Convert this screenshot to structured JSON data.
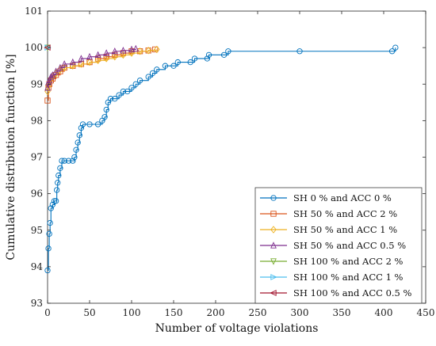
{
  "chart_data": {
    "type": "line",
    "xlabel": "Number of voltage violations",
    "ylabel": "Cumulative distribution function [%]",
    "xlim": [
      0,
      450
    ],
    "ylim": [
      93,
      101
    ],
    "xticks": [
      0,
      50,
      100,
      150,
      200,
      250,
      300,
      350,
      400,
      450
    ],
    "yticks": [
      93,
      94,
      95,
      96,
      97,
      98,
      99,
      100,
      101
    ],
    "legend_position": "bottom-right",
    "series": [
      {
        "name": "SH 0 % and ACC 0 %",
        "color": "#0072BD",
        "marker": "circle",
        "points": [
          [
            0,
            93.9
          ],
          [
            1,
            94.5
          ],
          [
            2,
            94.9
          ],
          [
            3,
            95.2
          ],
          [
            4,
            95.6
          ],
          [
            6,
            95.7
          ],
          [
            8,
            95.8
          ],
          [
            10,
            95.8
          ],
          [
            11,
            96.1
          ],
          [
            12,
            96.3
          ],
          [
            13,
            96.5
          ],
          [
            15,
            96.7
          ],
          [
            17,
            96.9
          ],
          [
            20,
            96.9
          ],
          [
            25,
            96.9
          ],
          [
            30,
            96.9
          ],
          [
            32,
            97.0
          ],
          [
            34,
            97.2
          ],
          [
            36,
            97.4
          ],
          [
            38,
            97.6
          ],
          [
            40,
            97.8
          ],
          [
            42,
            97.9
          ],
          [
            50,
            97.9
          ],
          [
            60,
            97.9
          ],
          [
            65,
            98.0
          ],
          [
            68,
            98.1
          ],
          [
            70,
            98.3
          ],
          [
            72,
            98.5
          ],
          [
            75,
            98.6
          ],
          [
            80,
            98.6
          ],
          [
            85,
            98.7
          ],
          [
            90,
            98.8
          ],
          [
            95,
            98.8
          ],
          [
            100,
            98.9
          ],
          [
            105,
            99.0
          ],
          [
            110,
            99.1
          ],
          [
            120,
            99.2
          ],
          [
            125,
            99.3
          ],
          [
            130,
            99.4
          ],
          [
            140,
            99.5
          ],
          [
            150,
            99.5
          ],
          [
            155,
            99.6
          ],
          [
            170,
            99.6
          ],
          [
            175,
            99.7
          ],
          [
            190,
            99.7
          ],
          [
            192,
            99.8
          ],
          [
            210,
            99.8
          ],
          [
            215,
            99.9
          ],
          [
            300,
            99.9
          ],
          [
            410,
            99.9
          ],
          [
            414,
            100.0
          ]
        ]
      },
      {
        "name": "SH 50 % and ACC 2 %",
        "color": "#D95319",
        "marker": "square",
        "points": [
          [
            0,
            98.55
          ],
          [
            1,
            98.9
          ],
          [
            2,
            99.0
          ],
          [
            4,
            99.1
          ],
          [
            6,
            99.15
          ],
          [
            10,
            99.25
          ],
          [
            15,
            99.35
          ],
          [
            20,
            99.45
          ],
          [
            30,
            99.5
          ],
          [
            40,
            99.55
          ],
          [
            50,
            99.6
          ],
          [
            60,
            99.7
          ],
          [
            70,
            99.75
          ],
          [
            80,
            99.8
          ],
          [
            90,
            99.85
          ],
          [
            100,
            99.9
          ],
          [
            110,
            99.9
          ],
          [
            120,
            99.92
          ],
          [
            128,
            99.95
          ]
        ]
      },
      {
        "name": "SH 50 % and ACC 1 %",
        "color": "#EDB120",
        "marker": "diamond",
        "points": [
          [
            0,
            98.8
          ],
          [
            1,
            98.95
          ],
          [
            2,
            99.05
          ],
          [
            4,
            99.15
          ],
          [
            6,
            99.2
          ],
          [
            10,
            99.3
          ],
          [
            15,
            99.4
          ],
          [
            20,
            99.45
          ],
          [
            30,
            99.5
          ],
          [
            40,
            99.55
          ],
          [
            50,
            99.6
          ],
          [
            60,
            99.65
          ],
          [
            70,
            99.7
          ],
          [
            80,
            99.75
          ],
          [
            90,
            99.8
          ],
          [
            100,
            99.85
          ],
          [
            110,
            99.9
          ],
          [
            120,
            99.92
          ],
          [
            130,
            99.95
          ]
        ]
      },
      {
        "name": "SH 50 % and ACC 0.5 %",
        "color": "#7E2F8E",
        "marker": "triangle-up",
        "points": [
          [
            0,
            98.9
          ],
          [
            1,
            99.05
          ],
          [
            2,
            99.1
          ],
          [
            4,
            99.2
          ],
          [
            6,
            99.25
          ],
          [
            10,
            99.35
          ],
          [
            15,
            99.45
          ],
          [
            20,
            99.55
          ],
          [
            30,
            99.6
          ],
          [
            40,
            99.7
          ],
          [
            50,
            99.75
          ],
          [
            60,
            99.8
          ],
          [
            70,
            99.85
          ],
          [
            80,
            99.9
          ],
          [
            90,
            99.92
          ],
          [
            100,
            99.95
          ],
          [
            105,
            99.97
          ]
        ]
      },
      {
        "name": "SH 100 % and ACC 2 %",
        "color": "#77AC30",
        "marker": "triangle-down",
        "points": [
          [
            0,
            100.0
          ]
        ]
      },
      {
        "name": "SH 100 % and ACC 1 %",
        "color": "#4DBEEE",
        "marker": "triangle-right",
        "points": [
          [
            0,
            100.0
          ]
        ]
      },
      {
        "name": "SH 100 % and ACC 0.5 %",
        "color": "#A2142F",
        "marker": "triangle-left",
        "points": [
          [
            0,
            100.0
          ]
        ]
      }
    ]
  }
}
